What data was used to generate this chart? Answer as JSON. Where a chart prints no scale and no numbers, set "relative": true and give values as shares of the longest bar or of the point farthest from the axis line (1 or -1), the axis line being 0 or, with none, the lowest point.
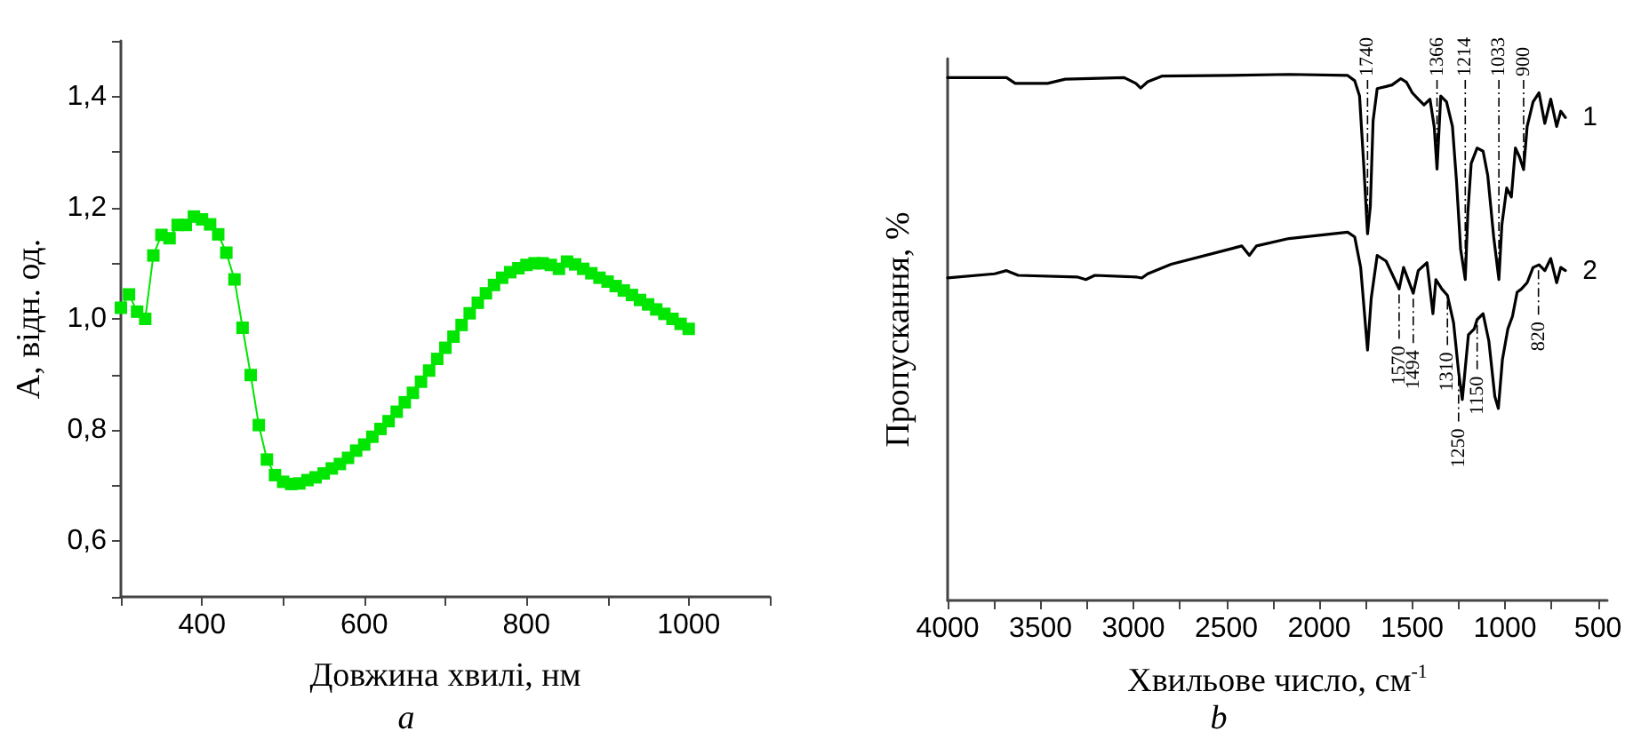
{
  "chart_data": [
    {
      "type": "line",
      "xlabel": "Довжина хвилі, нм",
      "ylabel": "A, відн. од.",
      "annotations": [
        "a"
      ],
      "x": [
        300,
        310,
        320,
        330,
        340,
        350,
        360,
        370,
        380,
        390,
        400,
        410,
        420,
        430,
        440,
        450,
        460,
        470,
        480,
        490,
        500,
        510,
        520,
        530,
        540,
        550,
        560,
        570,
        580,
        590,
        600,
        610,
        620,
        630,
        640,
        650,
        660,
        670,
        680,
        690,
        700,
        710,
        720,
        730,
        740,
        750,
        760,
        770,
        780,
        790,
        800,
        810,
        820,
        830,
        840,
        850,
        860,
        870,
        880,
        890,
        900,
        910,
        920,
        930,
        940,
        950,
        960,
        970,
        980,
        990,
        1000
      ],
      "series": [
        {
          "color": "#00e600",
          "values": [
            1.02,
            1.044,
            1.013,
            1.0,
            1.114,
            1.151,
            1.145,
            1.169,
            1.169,
            1.184,
            1.179,
            1.17,
            1.152,
            1.119,
            1.071,
            0.984,
            0.899,
            0.809,
            0.747,
            0.719,
            0.707,
            0.703,
            0.704,
            0.71,
            0.715,
            0.722,
            0.731,
            0.739,
            0.75,
            0.763,
            0.774,
            0.788,
            0.802,
            0.816,
            0.833,
            0.85,
            0.867,
            0.887,
            0.907,
            0.928,
            0.948,
            0.968,
            0.989,
            1.01,
            1.029,
            1.046,
            1.061,
            1.074,
            1.084,
            1.091,
            1.097,
            1.1,
            1.1,
            1.097,
            1.09,
            1.103,
            1.098,
            1.09,
            1.082,
            1.074,
            1.067,
            1.059,
            1.051,
            1.043,
            1.034,
            1.026,
            1.017,
            1.009,
            1.0,
            0.991,
            0.982
          ]
        }
      ],
      "xlim": [
        300,
        1100
      ],
      "xticks": [
        {
          "value": 300,
          "label": null
        },
        400,
        {
          "value": 500,
          "label": null
        },
        600,
        {
          "value": 700,
          "label": null
        },
        800,
        {
          "value": 900,
          "label": null
        },
        1000,
        {
          "value": 1100,
          "label": null
        }
      ],
      "ylim": [
        0.5,
        1.5
      ],
      "yticks": [
        {
          "value": 0.5,
          "label": null
        },
        {
          "value": 0.6,
          "label": "0,6"
        },
        {
          "value": 0.7,
          "label": null
        },
        {
          "value": 0.8,
          "label": "0,8"
        },
        {
          "value": 0.9,
          "label": null
        },
        {
          "value": 1.0,
          "label": "1,0"
        },
        {
          "value": 1.1,
          "label": null
        },
        {
          "value": 1.2,
          "label": "1,2"
        },
        {
          "value": 1.3,
          "label": null
        },
        {
          "value": 1.4,
          "label": "1,4"
        },
        {
          "value": 1.5,
          "label": null
        }
      ],
      "marker": "square",
      "line_style": "solid",
      "grid": false,
      "legend": false
    },
    {
      "type": "line",
      "relative": true,
      "xlabel": "Хвильове число, см$^{-1}$",
      "ylabel": "Пропускання, %",
      "tick_labels": "x",
      "annotations": [
        "b",
        {
          "text": "1740",
          "x": 1740,
          "y": 0.697
        },
        {
          "text": "1366",
          "x": 1366,
          "y": 0.82
        },
        {
          "text": "1214",
          "x": 1214,
          "y": 0.61
        },
        {
          "text": "1033",
          "x": 1033,
          "y": 0.61
        },
        {
          "text": "900",
          "x": 900,
          "y": 0.819
        },
        {
          "text": "1570",
          "x": 1570,
          "y": 0.592
        },
        {
          "text": "1494",
          "x": 1494,
          "y": 0.584
        },
        {
          "text": "1310",
          "x": 1310,
          "y": 0.58
        },
        {
          "text": "1250",
          "x": 1250,
          "y": 0.435
        },
        {
          "text": "1150",
          "x": 1150,
          "y": 0.534
        },
        {
          "text": "820",
          "x": 820,
          "y": 0.638
        }
      ],
      "series": [
        {
          "name": "1",
          "color": "#000000",
          "x": [
            4000,
            3683,
            3636,
            3462,
            3367,
            3050,
            2987,
            2961,
            2923,
            2844,
            2480,
            2163,
            1847,
            1809,
            1783,
            1761,
            1740,
            1725,
            1710,
            1688,
            1640,
            1608,
            1561,
            1530,
            1499,
            1467,
            1436,
            1404,
            1381,
            1366,
            1346,
            1315,
            1283,
            1261,
            1239,
            1214,
            1200,
            1182,
            1150,
            1118,
            1093,
            1061,
            1033,
            1017,
            991,
            966,
            944,
            922,
            900,
            881,
            849,
            817,
            786,
            754,
            722,
            700,
            675
          ],
          "values": [
            0.994,
            0.994,
            0.983,
            0.983,
            0.991,
            0.994,
            0.983,
            0.974,
            0.986,
            0.997,
            0.998,
            1.0,
            0.998,
            0.988,
            0.959,
            0.831,
            0.697,
            0.749,
            0.912,
            0.973,
            0.977,
            0.98,
            0.992,
            0.985,
            0.965,
            0.953,
            0.942,
            0.953,
            0.9,
            0.82,
            0.959,
            0.948,
            0.901,
            0.796,
            0.668,
            0.61,
            0.738,
            0.831,
            0.86,
            0.854,
            0.808,
            0.691,
            0.61,
            0.714,
            0.784,
            0.767,
            0.86,
            0.843,
            0.819,
            0.901,
            0.948,
            0.965,
            0.907,
            0.953,
            0.901,
            0.93,
            0.918
          ]
        },
        {
          "name": "2",
          "color": "#000000",
          "x": [
            4000,
            3747,
            3683,
            3620,
            3303,
            3256,
            3208,
            2987,
            2955,
            2923,
            2797,
            2480,
            2417,
            2376,
            2338,
            2163,
            1847,
            1809,
            1777,
            1740,
            1720,
            1688,
            1640,
            1570,
            1546,
            1494,
            1467,
            1420,
            1388,
            1372,
            1340,
            1310,
            1277,
            1250,
            1230,
            1197,
            1166,
            1150,
            1118,
            1087,
            1055,
            1036,
            1014,
            985,
            960,
            935,
            912,
            881,
            849,
            817,
            786,
            754,
            722,
            700,
            675
          ],
          "values": [
            0.613,
            0.621,
            0.627,
            0.618,
            0.615,
            0.61,
            0.618,
            0.615,
            0.613,
            0.621,
            0.639,
            0.668,
            0.674,
            0.656,
            0.674,
            0.688,
            0.7,
            0.691,
            0.633,
            0.476,
            0.575,
            0.656,
            0.645,
            0.592,
            0.633,
            0.584,
            0.627,
            0.642,
            0.545,
            0.61,
            0.592,
            0.58,
            0.528,
            0.435,
            0.382,
            0.505,
            0.516,
            0.534,
            0.545,
            0.493,
            0.388,
            0.365,
            0.458,
            0.516,
            0.54,
            0.586,
            0.592,
            0.604,
            0.633,
            0.638,
            0.627,
            0.65,
            0.604,
            0.633,
            0.627
          ]
        }
      ],
      "xlim": [
        4000,
        450
      ],
      "xticks": [
        4000,
        {
          "value": 3750,
          "label": null
        },
        3500,
        {
          "value": 3250,
          "label": null
        },
        3000,
        {
          "value": 2750,
          "label": null
        },
        2500,
        {
          "value": 2250,
          "label": null
        },
        2000,
        {
          "value": 1750,
          "label": null
        },
        1500,
        {
          "value": 1250,
          "label": null
        },
        1000,
        {
          "value": 750,
          "label": null
        },
        500
      ],
      "marker": "none",
      "line_style": "solid",
      "grid": false,
      "legend": false
    }
  ]
}
